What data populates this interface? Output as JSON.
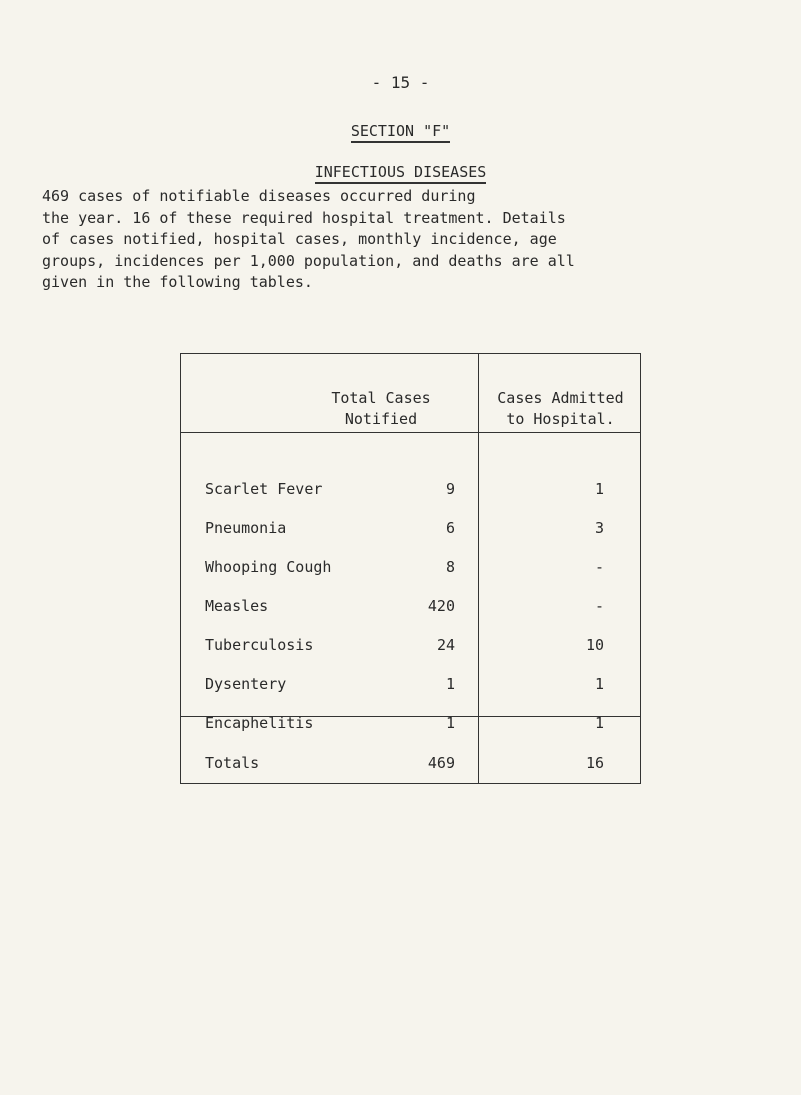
{
  "page_number": "- 15 -",
  "section_title": "SECTION \"F\"",
  "subtitle": "INFECTIOUS DISEASES",
  "paragraph_lines": [
    "469 cases of notifiable diseases occurred during",
    "the year. 16 of these required hospital treatment. Details",
    "of cases notified, hospital cases, monthly incidence, age",
    "groups, incidences per 1,000 population, and deaths are all",
    "given in the following tables."
  ],
  "table": {
    "headers": {
      "notified": [
        "Total Cases",
        "Notified"
      ],
      "admitted": [
        "Cases Admitted",
        "to Hospital."
      ]
    },
    "rows": [
      {
        "disease": "Scarlet Fever",
        "notified": "9",
        "admitted": "1"
      },
      {
        "disease": "Pneumonia",
        "notified": "6",
        "admitted": "3"
      },
      {
        "disease": "Whooping Cough",
        "notified": "8",
        "admitted": "-"
      },
      {
        "disease": "Measles",
        "notified": "420",
        "admitted": "-"
      },
      {
        "disease": "Tuberculosis",
        "notified": "24",
        "admitted": "10"
      },
      {
        "disease": "Dysentery",
        "notified": "1",
        "admitted": "1"
      },
      {
        "disease": "Encaphelitis",
        "notified": "1",
        "admitted": "1"
      }
    ],
    "totals": {
      "label": "Totals",
      "notified": "469",
      "admitted": "16"
    }
  }
}
